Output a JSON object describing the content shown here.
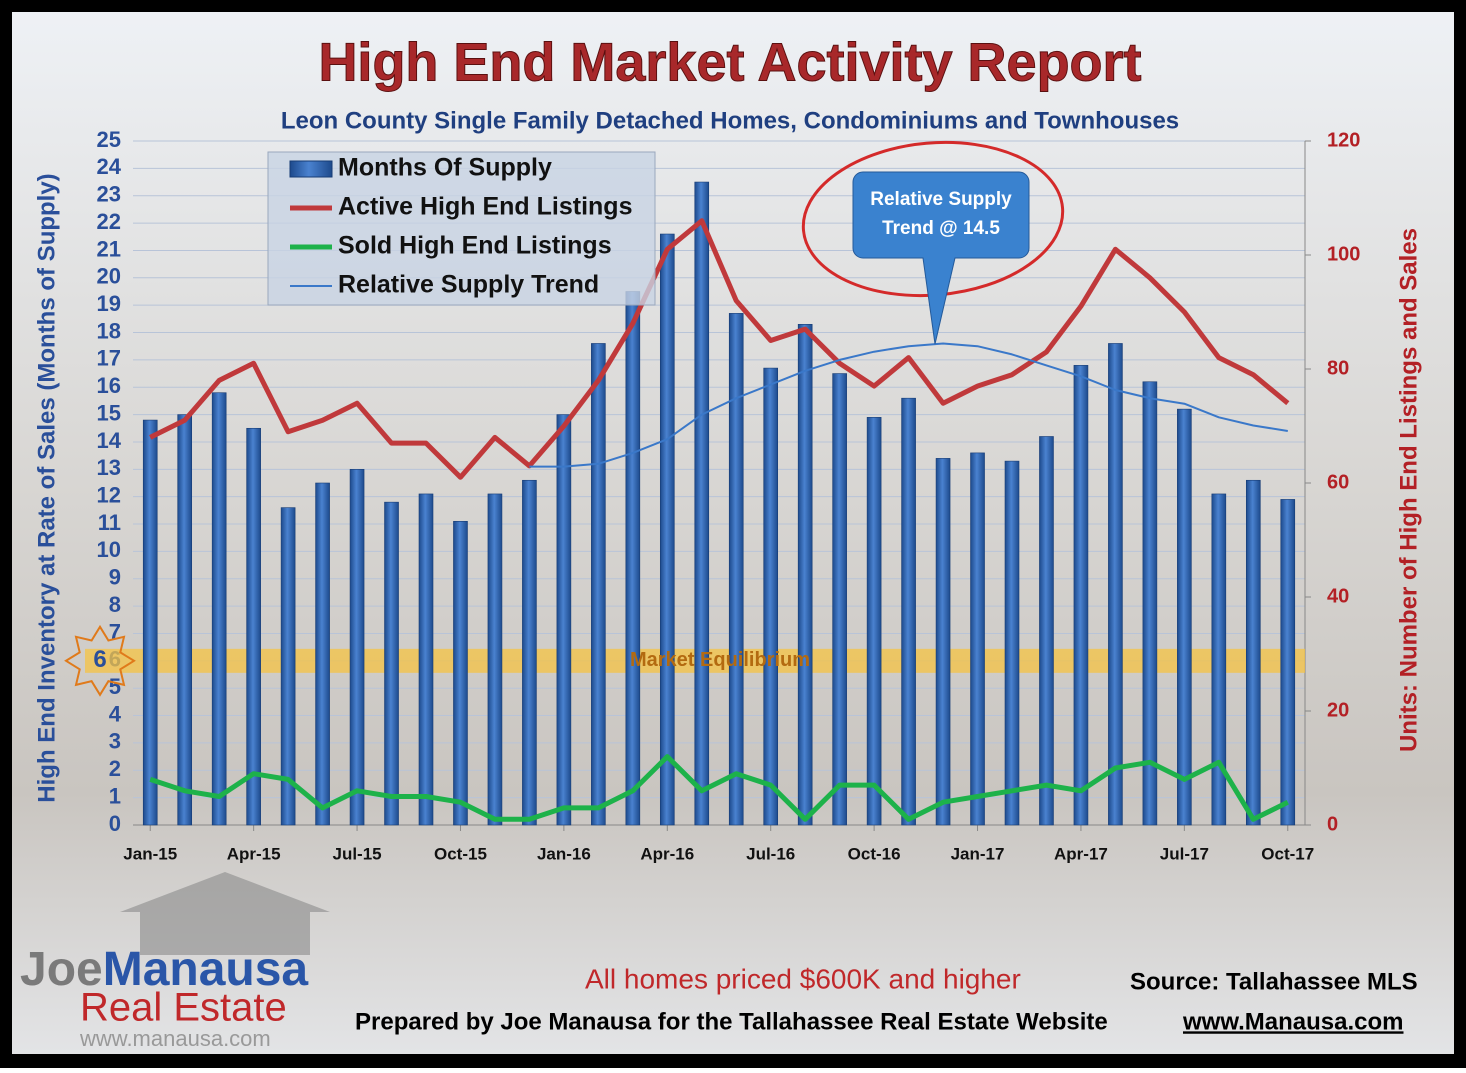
{
  "chart_data": {
    "type": "bar",
    "title": "High End Market Activity Report",
    "subtitle": "Leon County Single Family Detached Homes, Condominiums and Townhouses",
    "y_label": "High End Inventory at Rate of Sales (Months of Supply)",
    "y2_label": "Units: Number of High End Listings and Sales",
    "categories": [
      "Jan-15",
      null,
      null,
      "Apr-15",
      null,
      null,
      "Jul-15",
      null,
      null,
      "Oct-15",
      null,
      null,
      "Jan-16",
      null,
      null,
      "Apr-16",
      null,
      null,
      "Jul-16",
      null,
      null,
      "Oct-16",
      null,
      null,
      "Jan-17",
      null,
      null,
      "Apr-17",
      null,
      null,
      "Jul-17",
      null,
      null,
      "Oct-17"
    ],
    "series": [
      {
        "name": "Months Of Supply",
        "type": "bar",
        "axis": "y",
        "color": "#2f63b0",
        "values": [
          14.8,
          15.0,
          15.8,
          14.5,
          11.6,
          12.5,
          13.0,
          11.8,
          12.1,
          11.1,
          12.1,
          12.6,
          15.0,
          17.6,
          19.5,
          21.6,
          23.5,
          18.7,
          16.7,
          18.3,
          16.5,
          14.9,
          15.6,
          13.4,
          13.6,
          13.3,
          14.2,
          16.8,
          17.6,
          16.2,
          15.2,
          12.1,
          12.6,
          11.9
        ]
      },
      {
        "name": "Active High End Listings",
        "type": "line",
        "axis": "y2",
        "color": "#c0393b",
        "values": [
          68,
          71,
          78,
          81,
          69,
          71,
          74,
          67,
          67,
          61,
          68,
          63,
          70,
          78,
          88,
          101,
          106,
          92,
          85,
          87,
          81,
          77,
          82,
          74,
          77,
          79,
          83,
          91,
          101,
          96,
          90,
          82,
          79,
          74
        ]
      },
      {
        "name": "Sold High End Listings",
        "type": "line",
        "axis": "y2",
        "color": "#1db24a",
        "values": [
          8,
          6,
          5,
          9,
          8,
          3,
          6,
          5,
          5,
          4,
          1,
          1,
          3,
          3,
          6,
          12,
          6,
          9,
          7,
          1,
          7,
          7,
          1,
          4,
          5,
          6,
          7,
          6,
          10,
          11,
          8,
          11,
          1,
          4
        ]
      },
      {
        "name": "Relative Supply Trend",
        "type": "line",
        "axis": "y",
        "color": "#3a78c9",
        "values": [
          null,
          null,
          null,
          null,
          null,
          null,
          null,
          null,
          null,
          null,
          null,
          13.1,
          13.1,
          13.2,
          13.6,
          14.1,
          15.0,
          15.6,
          16.1,
          16.6,
          17.0,
          17.3,
          17.5,
          17.6,
          17.5,
          17.2,
          16.8,
          16.4,
          15.9,
          15.6,
          15.4,
          14.9,
          14.6,
          14.4
        ]
      }
    ],
    "ylim": [
      0,
      25
    ],
    "yticks": [
      0,
      1,
      2,
      3,
      4,
      5,
      6,
      7,
      8,
      9,
      10,
      11,
      12,
      13,
      14,
      15,
      16,
      17,
      18,
      19,
      20,
      21,
      22,
      23,
      24,
      25
    ],
    "y2lim": [
      0,
      120
    ],
    "y2ticks": [
      0,
      20,
      40,
      60,
      80,
      100,
      120
    ],
    "grid": true,
    "legend": "top-left",
    "equilibrium": {
      "value": 6,
      "label": "Market Equilibrium"
    },
    "callout": [
      "Relative Supply",
      "Trend @ 14.5"
    ],
    "footer": {
      "price_note": "All homes priced $600K and higher",
      "source": "Source: Tallahassee MLS",
      "prepared": "Prepared by Joe Manausa for the Tallahassee Real Estate Website",
      "url": "www.Manausa.com"
    },
    "logo": {
      "first": "Joe",
      "last": "Manausa",
      "line2": "Real Estate",
      "url": "www.manausa.com"
    }
  }
}
